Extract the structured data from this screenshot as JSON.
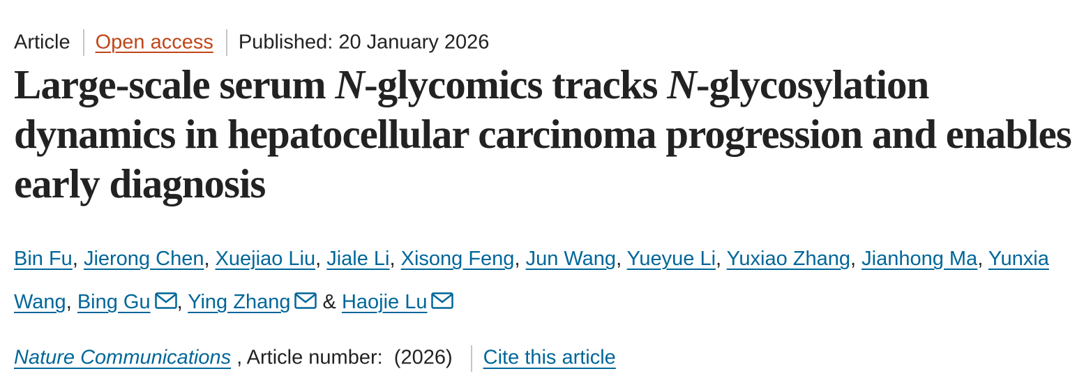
{
  "header": {
    "type": "Article",
    "access": "Open access",
    "published": "Published: 20 January 2026"
  },
  "title": {
    "segments": [
      {
        "text": "Large-scale serum "
      },
      {
        "text": "N",
        "italic": true
      },
      {
        "text": "-glycomics tracks "
      },
      {
        "text": "N",
        "italic": true
      },
      {
        "text": "-glycosylation dynamics in hepatocellular carcinoma progression and enables early diagnosis"
      }
    ]
  },
  "authors": {
    "separator": ", ",
    "final_separator": " & ",
    "list": [
      {
        "name": "Bin Fu"
      },
      {
        "name": "Jierong Chen"
      },
      {
        "name": "Xuejiao Liu"
      },
      {
        "name": "Jiale Li"
      },
      {
        "name": "Xisong Feng"
      },
      {
        "name": "Jun Wang"
      },
      {
        "name": "Yueyue Li"
      },
      {
        "name": "Yuxiao Zhang"
      },
      {
        "name": "Jianhong Ma"
      },
      {
        "name": "Yunxia Wang"
      },
      {
        "name": "Bing Gu",
        "email_icon": true
      },
      {
        "name": "Ying Zhang",
        "email_icon": true
      },
      {
        "name": "Haojie Lu",
        "email_icon": true
      }
    ]
  },
  "citation": {
    "journal": "Nature Communications",
    "article_number_label": ", Article number:",
    "year": "(2026)",
    "cite": "Cite this article"
  }
}
